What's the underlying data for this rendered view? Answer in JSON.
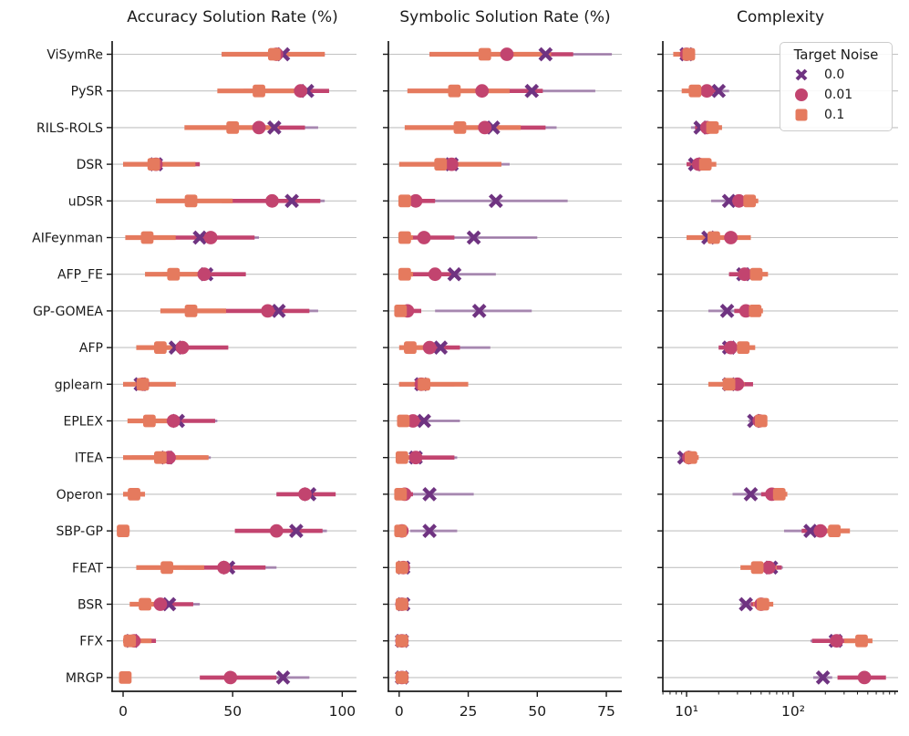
{
  "figure": {
    "background": "#ffffff"
  },
  "legend": {
    "title": "Target Noise",
    "items": [
      {
        "label": "0.0",
        "marker": "x",
        "color": "#6f3381"
      },
      {
        "label": "0.01",
        "marker": "circle",
        "color": "#c2446f"
      },
      {
        "label": "0.1",
        "marker": "square",
        "color": "#e57a5e"
      }
    ]
  },
  "algorithms": [
    "ViSymRe",
    "PySR",
    "RILS-ROLS",
    "DSR",
    "uDSR",
    "AIFeynman",
    "AFP_FE",
    "GP-GOMEA",
    "AFP",
    "gplearn",
    "EPLEX",
    "ITEA",
    "Operon",
    "SBP-GP",
    "FEAT",
    "BSR",
    "FFX",
    "MRGP"
  ],
  "chart_data": [
    {
      "type": "scatter",
      "title": "Accuracy Solution Rate (%)",
      "xscale": "linear",
      "xlim": [
        -5,
        106.5
      ],
      "xticks": [
        0,
        50,
        100
      ],
      "xtick_labels": [
        "0",
        "50",
        "100"
      ],
      "grid": "horizontal",
      "series": [
        {
          "name": "0.0",
          "marker": "x",
          "color": "#6f3381",
          "values": [
            73,
            84,
            69,
            15,
            77,
            35,
            38,
            71,
            24,
            8,
            25,
            20,
            85,
            79,
            48,
            21,
            4,
            73
          ],
          "ci": [
            [
              46,
              92
            ],
            [
              60,
              94
            ],
            [
              50,
              89
            ],
            [
              2,
              30
            ],
            [
              50,
              92
            ],
            [
              20,
              62
            ],
            [
              20,
              56
            ],
            [
              48,
              89
            ],
            [
              10,
              45
            ],
            [
              0,
              23
            ],
            [
              8,
              43
            ],
            [
              5,
              40
            ],
            [
              70,
              96
            ],
            [
              55,
              93
            ],
            [
              30,
              70
            ],
            [
              8,
              35
            ],
            [
              0,
              12
            ],
            [
              55,
              85
            ]
          ]
        },
        {
          "name": "0.01",
          "marker": "circle",
          "color": "#c2446f",
          "values": [
            70,
            81,
            62,
            15,
            68,
            40,
            37,
            66,
            27,
            9,
            23,
            21,
            83,
            70,
            46,
            17,
            5,
            49
          ],
          "ci": [
            [
              45,
              92
            ],
            [
              55,
              94
            ],
            [
              40,
              83
            ],
            [
              0,
              35
            ],
            [
              45,
              90
            ],
            [
              22,
              60
            ],
            [
              18,
              56
            ],
            [
              45,
              85
            ],
            [
              12,
              48
            ],
            [
              0,
              24
            ],
            [
              8,
              42
            ],
            [
              4,
              38
            ],
            [
              70,
              97
            ],
            [
              51,
              91
            ],
            [
              28,
              65
            ],
            [
              5,
              32
            ],
            [
              0,
              15
            ],
            [
              35,
              70
            ]
          ]
        },
        {
          "name": "0.1",
          "marker": "square",
          "color": "#e57a5e",
          "values": [
            69,
            62,
            50,
            14,
            31,
            11,
            23,
            31,
            17,
            9,
            12,
            17,
            5,
            0,
            20,
            10,
            3,
            1
          ],
          "ci": [
            [
              45,
              92
            ],
            [
              43,
              85
            ],
            [
              28,
              71
            ],
            [
              0,
              33
            ],
            [
              15,
              50
            ],
            [
              1,
              24
            ],
            [
              10,
              40
            ],
            [
              17,
              47
            ],
            [
              6,
              29
            ],
            [
              0,
              24
            ],
            [
              2,
              24
            ],
            [
              0,
              39
            ],
            [
              0,
              10
            ],
            [
              0,
              3
            ],
            [
              6,
              37
            ],
            [
              3,
              20
            ],
            [
              0,
              13
            ],
            [
              0,
              3
            ]
          ]
        }
      ]
    },
    {
      "type": "scatter",
      "title": "Symbolic Solution Rate (%)",
      "xscale": "linear",
      "xlim": [
        -3.9,
        80.6
      ],
      "xticks": [
        0,
        25,
        50,
        75
      ],
      "xtick_labels": [
        "0",
        "25",
        "50",
        "75"
      ],
      "grid": "horizontal",
      "series": [
        {
          "name": "0.0",
          "marker": "x",
          "color": "#6f3381",
          "values": [
            53,
            48,
            34,
            19,
            35,
            27,
            20,
            29,
            15,
            8,
            9,
            6,
            11,
            11,
            1.5,
            1.5,
            1,
            1
          ],
          "ci": [
            [
              25,
              77
            ],
            [
              25,
              71
            ],
            [
              10,
              57
            ],
            [
              3,
              40
            ],
            [
              5,
              61
            ],
            [
              5,
              50
            ],
            [
              5,
              35
            ],
            [
              13,
              48
            ],
            [
              4,
              33
            ],
            [
              0,
              22
            ],
            [
              2,
              22
            ],
            [
              1,
              21
            ],
            [
              3,
              27
            ],
            [
              4,
              21
            ],
            [
              0,
              3
            ],
            [
              0,
              3
            ],
            [
              0,
              2
            ],
            [
              0,
              2
            ]
          ]
        },
        {
          "name": "0.01",
          "marker": "circle",
          "color": "#c2446f",
          "values": [
            39,
            30,
            31,
            19,
            6,
            9,
            13,
            3,
            11,
            8,
            5,
            6,
            2,
            1,
            1.5,
            1,
            1,
            1
          ],
          "ci": [
            [
              11,
              63
            ],
            [
              3,
              52
            ],
            [
              5,
              53
            ],
            [
              2,
              37
            ],
            [
              0,
              13
            ],
            [
              2,
              20
            ],
            [
              2,
              20
            ],
            [
              0,
              8
            ],
            [
              2,
              22
            ],
            [
              0,
              20
            ],
            [
              1,
              10
            ],
            [
              1,
              20
            ],
            [
              0,
              5
            ],
            [
              0,
              3
            ],
            [
              0,
              3
            ],
            [
              0,
              3
            ],
            [
              0,
              2
            ],
            [
              0,
              2
            ]
          ]
        },
        {
          "name": "0.1",
          "marker": "square",
          "color": "#e57a5e",
          "values": [
            31,
            20,
            22,
            15,
            2,
            2,
            2,
            0.5,
            4,
            9,
            1.5,
            1,
            0.5,
            0.5,
            1,
            1,
            1,
            1
          ],
          "ci": [
            [
              11,
              55
            ],
            [
              3,
              40
            ],
            [
              2,
              44
            ],
            [
              0,
              37
            ],
            [
              0,
              8
            ],
            [
              0,
              5
            ],
            [
              0,
              5
            ],
            [
              0,
              3
            ],
            [
              0,
              11
            ],
            [
              0,
              25
            ],
            [
              0,
              5
            ],
            [
              0,
              4
            ],
            [
              0,
              2
            ],
            [
              0,
              2
            ],
            [
              0,
              2
            ],
            [
              0,
              2
            ],
            [
              0,
              2
            ],
            [
              0,
              2
            ]
          ]
        }
      ]
    },
    {
      "type": "scatter",
      "title": "Complexity",
      "xscale": "log",
      "xlim": [
        5.99,
        961
      ],
      "xticks": [
        10,
        100
      ],
      "xtick_labels": [
        "10¹",
        "10²"
      ],
      "grid": "horizontal",
      "series": [
        {
          "name": "0.0",
          "marker": "x",
          "color": "#6f3381",
          "values": [
            10,
            20,
            13.5,
            12,
            25,
            16,
            34,
            24,
            25,
            25,
            43,
            9.5,
            40,
            145,
            62,
            36,
            250,
            190
          ],
          "ci": [
            [
              8,
              11
            ],
            [
              15,
              25
            ],
            [
              11,
              17
            ],
            [
              10,
              14
            ],
            [
              17,
              30
            ],
            [
              10,
              25
            ],
            [
              25,
              45
            ],
            [
              16,
              30
            ],
            [
              20,
              32
            ],
            [
              17,
              35
            ],
            [
              38,
              50
            ],
            [
              8.5,
              11
            ],
            [
              27,
              53
            ],
            [
              82,
              215
            ],
            [
              45,
              80
            ],
            [
              32,
              42
            ],
            [
              145,
              260
            ],
            [
              154,
              232
            ]
          ]
        },
        {
          "name": "0.01",
          "marker": "circle",
          "color": "#c2446f",
          "values": [
            10,
            15.5,
            15.5,
            13,
            31,
            26,
            35,
            36,
            26,
            30,
            48,
            10.5,
            63,
            180,
            59,
            50,
            255,
            465
          ],
          "ci": [
            [
              8,
              11
            ],
            [
              11,
              20
            ],
            [
              12,
              19
            ],
            [
              10,
              16
            ],
            [
              24,
              38
            ],
            [
              16,
              40
            ],
            [
              25,
              48
            ],
            [
              28,
              44
            ],
            [
              20,
              33
            ],
            [
              20,
              42
            ],
            [
              42,
              54
            ],
            [
              9,
              12
            ],
            [
              50,
              77
            ],
            [
              120,
              260
            ],
            [
              42,
              78
            ],
            [
              40,
              62
            ],
            [
              150,
              380
            ],
            [
              260,
              740
            ]
          ]
        },
        {
          "name": "0.1",
          "marker": "square",
          "color": "#e57a5e",
          "values": [
            10.5,
            12,
            17.5,
            15,
            39,
            18,
            45,
            44,
            34,
            25,
            50,
            11,
            74,
            243,
            46,
            52,
            437,
            null
          ],
          "ci": [
            [
              7.5,
              12
            ],
            [
              9,
              16
            ],
            [
              13,
              21.5
            ],
            [
              11,
              19
            ],
            [
              30,
              47
            ],
            [
              10,
              40
            ],
            [
              34,
              58
            ],
            [
              35,
              52
            ],
            [
              26,
              44
            ],
            [
              16,
              35
            ],
            [
              44,
              57
            ],
            [
              9.5,
              13
            ],
            [
              60,
              88
            ],
            [
              170,
              340
            ],
            [
              32,
              70
            ],
            [
              42,
              65
            ],
            [
              300,
              553
            ],
            null
          ]
        }
      ]
    }
  ]
}
